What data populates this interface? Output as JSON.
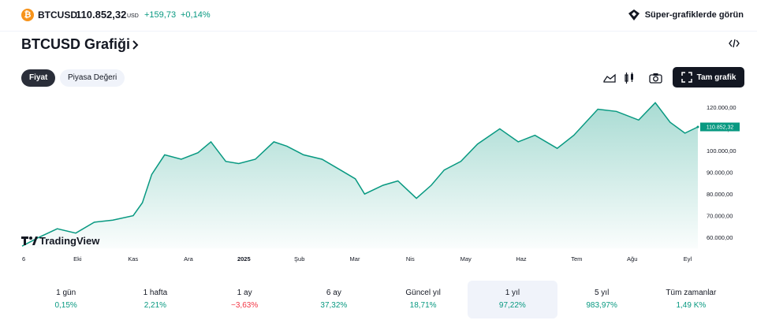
{
  "header": {
    "coin_glyph": "₿",
    "symbol": "BTCUSD",
    "price": "110.852,32",
    "currency": "USD",
    "change": "+159,73",
    "change_pct": "+0,14%",
    "super_charts": "Süper-grafiklerde görün"
  },
  "title": "BTCUSD Grafiği",
  "embed_icon": "code-icon",
  "tabs": [
    {
      "label": "Fiyat",
      "selected": true
    },
    {
      "label": "Piyasa Değeri",
      "selected": false
    }
  ],
  "toolbar": {
    "icons": [
      "area-chart-icon",
      "candles-icon",
      "camera-icon"
    ],
    "full_chart": "Tam grafik"
  },
  "chart_data": {
    "type": "area",
    "watermark": "TradingView",
    "last_price_label": "110.852,32",
    "y_ticks": [
      "120.000,00",
      "110.000,00",
      "100.000,00",
      "90.000,00",
      "80.000,00",
      "70.000,00",
      "60.000,00"
    ],
    "x_ticks": [
      "6",
      "Eki",
      "Kas",
      "Ara",
      "2025",
      "Şub",
      "Mar",
      "Nis",
      "May",
      "Haz",
      "Tem",
      "Ağu",
      "Eyl"
    ],
    "ylim": [
      55000,
      125000
    ],
    "line_color": "#089981",
    "x": [
      "2024-09-06",
      "2024-09-15",
      "2024-09-25",
      "2024-10-05",
      "2024-10-15",
      "2024-10-25",
      "2024-11-05",
      "2024-11-10",
      "2024-11-15",
      "2024-11-22",
      "2024-12-01",
      "2024-12-10",
      "2024-12-17",
      "2024-12-25",
      "2025-01-01",
      "2025-01-10",
      "2025-01-20",
      "2025-01-27",
      "2025-02-05",
      "2025-02-15",
      "2025-02-25",
      "2025-03-05",
      "2025-03-10",
      "2025-03-20",
      "2025-03-28",
      "2025-04-07",
      "2025-04-15",
      "2025-04-22",
      "2025-05-01",
      "2025-05-10",
      "2025-05-22",
      "2025-06-01",
      "2025-06-10",
      "2025-06-22",
      "2025-07-01",
      "2025-07-14",
      "2025-07-24",
      "2025-08-05",
      "2025-08-14",
      "2025-08-22",
      "2025-08-30",
      "2025-09-06"
    ],
    "values": [
      56000,
      60000,
      64000,
      62000,
      67000,
      68000,
      70000,
      76000,
      89000,
      98000,
      96000,
      99000,
      104000,
      95000,
      94000,
      96000,
      104000,
      102000,
      98000,
      96000,
      91000,
      87000,
      80000,
      84000,
      86000,
      78000,
      84000,
      91000,
      95000,
      103000,
      110000,
      104000,
      107000,
      101000,
      107000,
      119000,
      118000,
      114000,
      122000,
      113000,
      108000,
      110852
    ]
  },
  "periods": [
    {
      "label": "1 gün",
      "value": "0,15%",
      "dir": "up",
      "selected": false
    },
    {
      "label": "1 hafta",
      "value": "2,21%",
      "dir": "up",
      "selected": false
    },
    {
      "label": "1 ay",
      "value": "−3,63%",
      "dir": "down",
      "selected": false
    },
    {
      "label": "6 ay",
      "value": "37,32%",
      "dir": "up",
      "selected": false
    },
    {
      "label": "Güncel yıl",
      "value": "18,71%",
      "dir": "up",
      "selected": false
    },
    {
      "label": "1 yıl",
      "value": "97,22%",
      "dir": "up",
      "selected": true
    },
    {
      "label": "5 yıl",
      "value": "983,97%",
      "dir": "up",
      "selected": false
    },
    {
      "label": "Tüm zamanlar",
      "value": "1,49 K%",
      "dir": "up",
      "selected": false
    }
  ]
}
